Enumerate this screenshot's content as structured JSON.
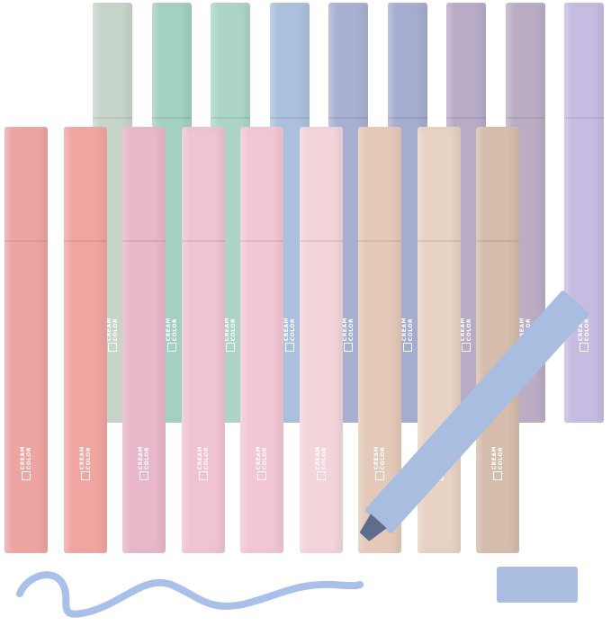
{
  "logo": {
    "text": "CREAM\nCOLOR"
  },
  "back_row_colors": [
    "#c6d4c9",
    "#a2d0c1",
    "#acd5c5",
    "#abc0dd",
    "#a8b0d2",
    "#a5adcf",
    "#b8abc6",
    "#baadc4",
    "#c6bbe1"
  ],
  "front_row_colors": [
    "#eea4a1",
    "#f0a5a1",
    "#e8b7c9",
    "#efc3d0",
    "#f2c6d3",
    "#f3d4db",
    "#e4c9b8",
    "#e7d2c3",
    "#d5bcab"
  ],
  "featured_marker_color": "#a9bde0",
  "ink_color": "#a9c0ea"
}
